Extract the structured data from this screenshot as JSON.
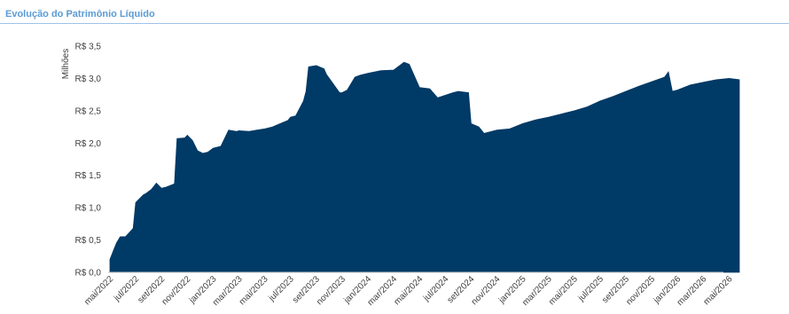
{
  "header": {
    "title": "Evolução do Patrimônio Líquido"
  },
  "chart_data": {
    "type": "area",
    "title": "Evolução do Patrimônio Líquido",
    "ylabel": "Milhões",
    "xlabel": "",
    "ylim": [
      0,
      3.5
    ],
    "yticks": [
      0.0,
      0.5,
      1.0,
      1.5,
      2.0,
      2.5,
      3.0,
      3.5
    ],
    "ytick_labels": [
      "R$ 0,0",
      "R$ 0,5",
      "R$ 1,0",
      "R$ 1,5",
      "R$ 2,0",
      "R$ 2,5",
      "R$ 3,0",
      "R$ 3,5"
    ],
    "xtick_labels": [
      "mai/2022",
      "jul/2022",
      "set/2022",
      "nov/2022",
      "jan/2023",
      "mar/2023",
      "mai/2023",
      "jul/2023",
      "set/2023",
      "nov/2023",
      "jan/2024",
      "mar/2024",
      "mai/2024",
      "jul/2024",
      "set/2024",
      "nov/2024",
      "jan/2025",
      "mar/2025",
      "mai/2025",
      "jul/2025",
      "set/2025",
      "nov/2025",
      "jan/2026",
      "mar/2026",
      "mai/2026"
    ],
    "grid": false,
    "legend": "none",
    "color": "#003a66",
    "series": [
      {
        "x": [
          0.0,
          0.1,
          0.25,
          0.4,
          0.6,
          0.9,
          1.0,
          1.3,
          1.4,
          1.6,
          1.8,
          2.0,
          2.2,
          2.5,
          2.6,
          2.9,
          3.0,
          3.2,
          3.4,
          3.6,
          3.8,
          4.0,
          4.3,
          4.6,
          4.9,
          5.0,
          5.4,
          5.7,
          6.0,
          6.3,
          6.6,
          6.9,
          7.0,
          7.2,
          7.5,
          7.6,
          7.7,
          8.0,
          8.3,
          8.4,
          8.9,
          9.0,
          9.2,
          9.5,
          9.7,
          10.0,
          10.5,
          11.0,
          11.3,
          11.4,
          11.6,
          12.0,
          12.2,
          12.4,
          12.7,
          13.0,
          13.3,
          13.5,
          13.9,
          14.0,
          14.3,
          14.5,
          15.0,
          15.5,
          16.0,
          16.5,
          17.0,
          17.5,
          18.0,
          18.5,
          19.0,
          19.5,
          20.0,
          20.5,
          21.0,
          21.5,
          21.65,
          21.8,
          22.0,
          22.5,
          23.0,
          23.5,
          24.0,
          24.4
        ],
        "values": [
          0.2,
          0.3,
          0.45,
          0.55,
          0.55,
          0.68,
          1.08,
          1.2,
          1.22,
          1.28,
          1.38,
          1.3,
          1.32,
          1.37,
          2.07,
          2.08,
          2.12,
          2.04,
          1.88,
          1.84,
          1.86,
          1.92,
          1.95,
          2.2,
          2.18,
          2.19,
          2.18,
          2.2,
          2.22,
          2.25,
          2.3,
          2.35,
          2.4,
          2.42,
          2.65,
          2.8,
          3.18,
          3.2,
          3.15,
          3.06,
          2.78,
          2.78,
          2.82,
          3.02,
          3.05,
          3.08,
          3.12,
          3.13,
          3.22,
          3.25,
          3.22,
          2.86,
          2.85,
          2.84,
          2.7,
          2.74,
          2.78,
          2.8,
          2.78,
          2.3,
          2.25,
          2.15,
          2.2,
          2.22,
          2.3,
          2.36,
          2.4,
          2.45,
          2.5,
          2.56,
          2.65,
          2.72,
          2.8,
          2.88,
          2.95,
          3.02,
          3.1,
          2.8,
          2.82,
          2.9,
          2.94,
          2.98,
          3.0,
          2.98
        ]
      }
    ]
  }
}
